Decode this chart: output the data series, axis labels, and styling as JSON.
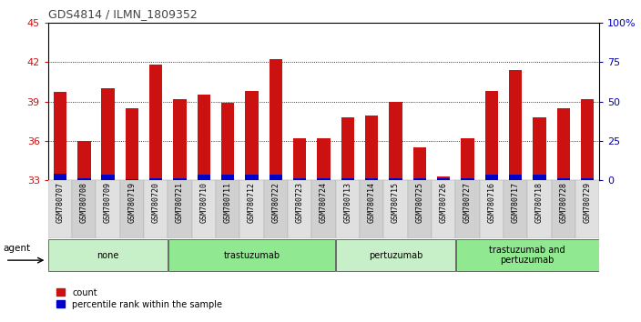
{
  "title": "GDS4814 / ILMN_1809352",
  "samples": [
    "GSM780707",
    "GSM780708",
    "GSM780709",
    "GSM780719",
    "GSM780720",
    "GSM780721",
    "GSM780710",
    "GSM780711",
    "GSM780712",
    "GSM780722",
    "GSM780723",
    "GSM780724",
    "GSM780713",
    "GSM780714",
    "GSM780715",
    "GSM780725",
    "GSM780726",
    "GSM780727",
    "GSM780716",
    "GSM780717",
    "GSM780718",
    "GSM780728",
    "GSM780729"
  ],
  "counts": [
    39.7,
    36.0,
    40.0,
    38.5,
    41.8,
    39.2,
    39.5,
    38.9,
    39.8,
    42.2,
    36.2,
    36.2,
    37.8,
    37.9,
    39.0,
    35.5,
    33.3,
    36.2,
    39.8,
    41.4,
    37.8,
    38.5,
    39.2
  ],
  "percentile_ranks": [
    4.0,
    1.5,
    3.5,
    1.0,
    1.5,
    1.5,
    3.5,
    3.5,
    3.5,
    3.5,
    1.5,
    1.5,
    1.5,
    1.5,
    1.5,
    1.5,
    1.5,
    1.5,
    3.5,
    3.5,
    3.5,
    1.5,
    1.5
  ],
  "ymin": 33,
  "ymax": 45,
  "yticks_left": [
    33,
    36,
    39,
    42,
    45
  ],
  "yticks_right": [
    0,
    25,
    50,
    75,
    100
  ],
  "groups": [
    {
      "label": "none",
      "start": 0,
      "end": 5,
      "color": "#c8f0c8"
    },
    {
      "label": "trastuzumab",
      "start": 5,
      "end": 12,
      "color": "#90e890"
    },
    {
      "label": "pertuzumab",
      "start": 12,
      "end": 17,
      "color": "#c8f0c8"
    },
    {
      "label": "trastuzumab and\npertuzumab",
      "start": 17,
      "end": 23,
      "color": "#90e890"
    }
  ],
  "bar_width": 0.55,
  "count_color": "#cc1111",
  "percentile_color": "#0000cc",
  "left_axis_color": "#cc1111",
  "right_axis_color": "#0000bb"
}
